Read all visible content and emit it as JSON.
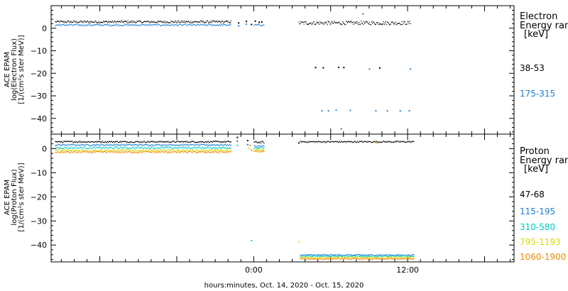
{
  "chart_data": [
    {
      "type": "scatter",
      "ylabel": [
        "ACE EPAM",
        "log(Electron Flux)",
        "[1/(cm²s ster MeV)]"
      ],
      "ylim": [
        -47,
        10
      ],
      "yticks": [
        0,
        -10,
        -20,
        -30,
        -40
      ],
      "legend_title": [
        "Electron",
        "Energy ran",
        "[keV]"
      ],
      "series": [
        {
          "name": "38-53",
          "color": "#000000",
          "segments": [
            {
              "x0": -15.5,
              "x1": -1.8,
              "y": 3.0,
              "jitter": 0.5
            },
            {
              "x0": 3.5,
              "x1": 12.2,
              "y": 2.5,
              "jitter": 0.8
            }
          ],
          "points": [
            [
              -1.2,
              2.5
            ],
            [
              -0.6,
              3.2
            ],
            [
              -0.2,
              1.8
            ],
            [
              0.1,
              3.3
            ],
            [
              0.4,
              2.8
            ],
            [
              0.6,
              2.9
            ]
          ]
        },
        {
          "name": "175-315",
          "color": "#1a7fd6",
          "segments": [
            {
              "x0": -15.5,
              "x1": -1.8,
              "y": 1.6,
              "jitter": 0.4
            },
            {
              "x0": 0.0,
              "x1": 0.8,
              "y": 1.6,
              "jitter": 0.4
            }
          ],
          "points": [
            [
              -1.2,
              1.2
            ],
            [
              -0.6,
              2.0
            ],
            [
              8.5,
              6.5
            ],
            [
              5.3,
              -36.5
            ],
            [
              5.8,
              -36.5
            ],
            [
              6.4,
              -36.2
            ],
            [
              7.5,
              -36.3
            ],
            [
              9.5,
              -36.5
            ],
            [
              10.4,
              -36.5
            ],
            [
              11.4,
              -36.5
            ],
            [
              12.1,
              -36.5
            ],
            [
              6.8,
              -44.5
            ],
            [
              9.0,
              -18.0
            ],
            [
              12.2,
              -18.0
            ]
          ]
        }
      ],
      "extra_points": [
        {
          "color": "#000000",
          "pts": [
            [
              4.8,
              -17.3
            ],
            [
              5.4,
              -17.4
            ],
            [
              6.6,
              -17.2
            ],
            [
              7.0,
              -17.3
            ],
            [
              9.8,
              -17.5
            ]
          ]
        }
      ]
    },
    {
      "type": "scatter",
      "ylabel": [
        "ACE EPAM",
        "log(Proton Flux)",
        "[1/(cm²s ster MeV)]"
      ],
      "ylim": [
        -47,
        6
      ],
      "yticks": [
        0,
        -10,
        -20,
        -30,
        -40
      ],
      "legend_title": [
        "Proton",
        "Energy ran",
        "[keV]"
      ],
      "xlabel": "hours:minutes, Oct. 14, 2020 - Oct. 15, 2020",
      "xlim": [
        -15.8,
        20.3
      ],
      "xticks": [
        {
          "value": 0,
          "label": "0:00"
        },
        {
          "value": 12,
          "label": "12:00"
        }
      ],
      "series": [
        {
          "name": "47-68",
          "color": "#000000",
          "segments": [
            {
              "x0": -15.5,
              "x1": -1.8,
              "y": 3.0,
              "jitter": 0.3
            },
            {
              "x0": 0.0,
              "x1": 0.8,
              "y": 2.8,
              "jitter": 0.4
            },
            {
              "x0": 3.6,
              "x1": 12.5,
              "y": 3.0,
              "jitter": 0.3
            }
          ],
          "points": [
            [
              -1.3,
              4.8
            ],
            [
              -0.5,
              3.5
            ],
            [
              3.5,
              2.5
            ]
          ]
        },
        {
          "name": "115-195",
          "color": "#1a7fd6",
          "segments": [
            {
              "x0": -15.5,
              "x1": -1.8,
              "y": 1.7,
              "jitter": 0.3
            },
            {
              "x0": 0.0,
              "x1": 0.8,
              "y": 1.2,
              "jitter": 0.4
            },
            {
              "x0": 3.6,
              "x1": 12.5,
              "y": -44.0,
              "jitter": 0.3
            }
          ],
          "points": [
            [
              -1.3,
              3.2
            ],
            [
              -0.5,
              1.8
            ]
          ]
        },
        {
          "name": "310-580",
          "color": "#00c8c8",
          "segments": [
            {
              "x0": -15.5,
              "x1": -1.8,
              "y": 0.5,
              "jitter": 0.4
            },
            {
              "x0": 0.0,
              "x1": 0.8,
              "y": 0.5,
              "jitter": 0.4
            },
            {
              "x0": 3.6,
              "x1": 12.5,
              "y": -44.5,
              "jitter": 0.3
            }
          ],
          "points": [
            [
              -0.2,
              -38.0
            ],
            [
              -1.3,
              1.5
            ]
          ]
        },
        {
          "name": "795-1193",
          "color": "#d8d800",
          "segments": [
            {
              "x0": -15.5,
              "x1": -1.8,
              "y": -0.6,
              "jitter": 0.4
            },
            {
              "x0": 0.0,
              "x1": 0.8,
              "y": -0.4,
              "jitter": 0.4
            },
            {
              "x0": 3.6,
              "x1": 12.5,
              "y": -45.0,
              "jitter": 0.3
            }
          ],
          "points": [
            [
              3.5,
              -38.5
            ],
            [
              -0.4,
              0.2
            ]
          ]
        },
        {
          "name": "1060-1900",
          "color": "#f08800",
          "segments": [
            {
              "x0": -15.5,
              "x1": -1.8,
              "y": -1.3,
              "jitter": 0.4
            },
            {
              "x0": 0.0,
              "x1": 0.8,
              "y": -1.0,
              "jitter": 0.4
            },
            {
              "x0": 3.6,
              "x1": 12.5,
              "y": -45.6,
              "jitter": 0.3
            }
          ],
          "points": [
            [
              -0.2,
              -0.5
            ],
            [
              -0.3,
              1.5
            ],
            [
              9.6,
              2.6
            ]
          ]
        }
      ]
    }
  ]
}
